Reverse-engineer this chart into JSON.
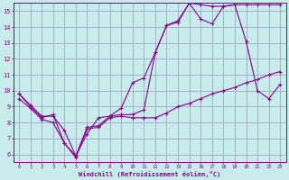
{
  "xlabel": "Windchill (Refroidissement éolien,°C)",
  "background_color": "#c8ecec",
  "line_color": "#880088",
  "grid_color": "#9999bb",
  "xlim": [
    -0.5,
    23.5
  ],
  "ylim": [
    5.5,
    15.5
  ],
  "xticks": [
    0,
    1,
    2,
    3,
    4,
    5,
    6,
    7,
    8,
    9,
    10,
    11,
    12,
    13,
    14,
    15,
    16,
    17,
    18,
    19,
    20,
    21,
    22,
    23
  ],
  "yticks": [
    6,
    7,
    8,
    9,
    10,
    11,
    12,
    13,
    14,
    15
  ],
  "line1_x": [
    0,
    1,
    2,
    3,
    4,
    5,
    6,
    7,
    8,
    9,
    10,
    11,
    12,
    13,
    14,
    15,
    16,
    17,
    18,
    19,
    20,
    21,
    22,
    23
  ],
  "line1_y": [
    9.8,
    9.1,
    8.4,
    8.4,
    7.5,
    5.9,
    7.3,
    8.3,
    8.4,
    8.9,
    10.5,
    10.8,
    12.4,
    14.1,
    14.3,
    15.5,
    14.5,
    14.2,
    15.3,
    15.4,
    13.1,
    10.0,
    9.5,
    10.4
  ],
  "line2_x": [
    0,
    1,
    2,
    3,
    4,
    5,
    6,
    7,
    8,
    9,
    10,
    11,
    12,
    13,
    14,
    15,
    16,
    17,
    18,
    19,
    20,
    21,
    22,
    23
  ],
  "line2_y": [
    9.5,
    8.9,
    8.2,
    8.0,
    6.7,
    5.8,
    7.6,
    7.7,
    8.3,
    8.4,
    8.3,
    8.3,
    8.3,
    8.6,
    9.0,
    9.2,
    9.5,
    9.8,
    10.0,
    10.2,
    10.5,
    10.7,
    11.0,
    11.2
  ],
  "line3_x": [
    0,
    1,
    2,
    3,
    4,
    5,
    6,
    7,
    8,
    9,
    10,
    11,
    12,
    13,
    14,
    15,
    16,
    17,
    18,
    19,
    20,
    21,
    22,
    23
  ],
  "line3_y": [
    9.8,
    9.0,
    8.3,
    8.5,
    6.7,
    5.9,
    7.7,
    7.8,
    8.4,
    8.5,
    8.5,
    8.8,
    12.4,
    14.1,
    14.4,
    15.5,
    15.4,
    15.3,
    15.3,
    15.4,
    15.4,
    15.4,
    15.4,
    15.4
  ]
}
